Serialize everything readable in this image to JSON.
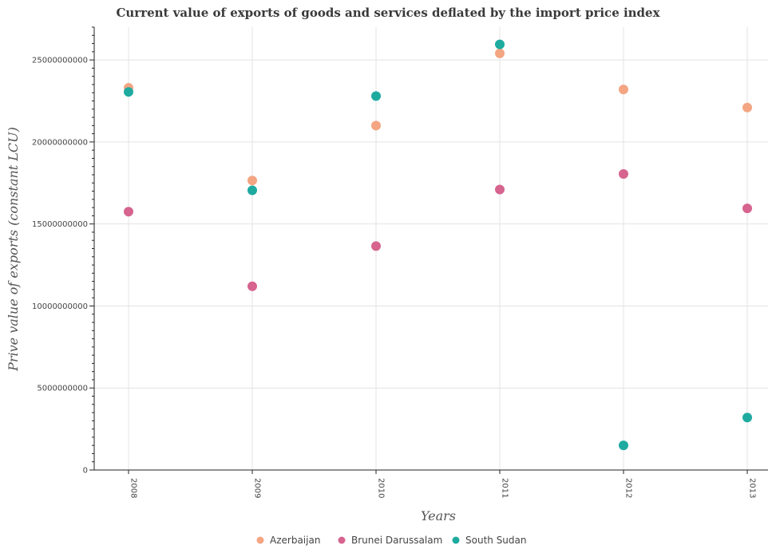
{
  "chart_data": {
    "type": "scatter",
    "title": "Current value of exports of goods and services deflated by the import price index",
    "xlabel": "Years",
    "ylabel": "Prive value of exports (constant LCU)",
    "categories": [
      "2008",
      "2009",
      "2010",
      "2011",
      "2012",
      "2013"
    ],
    "ylim": [
      0,
      27000000000
    ],
    "yticks": [
      0,
      5000000000,
      10000000000,
      15000000000,
      20000000000,
      25000000000
    ],
    "ytick_labels": [
      "0",
      "5000000000",
      "10000000000",
      "15000000000",
      "20000000000",
      "25000000000"
    ],
    "grid": true,
    "legend_position": "bottom",
    "series": [
      {
        "name": "Azerbaijan",
        "color": "#f4a582",
        "values": [
          23300000000,
          17650000000,
          21000000000,
          25400000000,
          23200000000,
          22100000000
        ]
      },
      {
        "name": "Brunei Darussalam",
        "color": "#d6648f",
        "values": [
          15750000000,
          11200000000,
          13650000000,
          17100000000,
          18050000000,
          15950000000
        ]
      },
      {
        "name": "South Sudan",
        "color": "#1faaa0",
        "values": [
          23050000000,
          17050000000,
          22800000000,
          25950000000,
          1500000000,
          3200000000
        ]
      }
    ]
  }
}
